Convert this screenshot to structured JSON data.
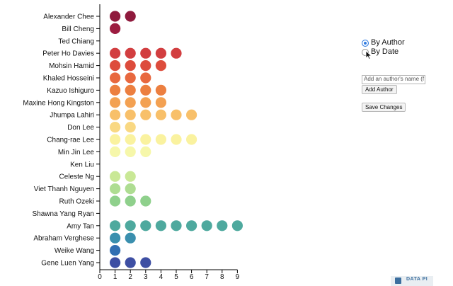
{
  "chart_data": {
    "type": "dot",
    "categories": [
      "Alexander Chee",
      "Bill Cheng",
      "Ted Chiang",
      "Peter Ho Davies",
      "Mohsin Hamid",
      "Khaled Hosseini",
      "Kazuo Ishiguro",
      "Maxine Hong Kingston",
      "Jhumpa Lahiri",
      "Don Lee",
      "Chang-rae Lee",
      "Min Jin Lee",
      "Ken Liu",
      "Celeste Ng",
      "Viet Thanh Nguyen",
      "Ruth Ozeki",
      "Shawna Yang Ryan",
      "Amy Tan",
      "Abraham Verghese",
      "Weike Wang",
      "Gene Luen Yang"
    ],
    "values": [
      2,
      1,
      0,
      5,
      4,
      3,
      4,
      4,
      6,
      2,
      6,
      3,
      0,
      2,
      2,
      3,
      0,
      9,
      2,
      1,
      3
    ],
    "colors": [
      "#8f1a3d",
      "#9c1c40",
      "#b32440",
      "#d23e40",
      "#dd4c3c",
      "#e8683f",
      "#ec7f40",
      "#f3a152",
      "#f8c06a",
      "#f9d882",
      "#faf29f",
      "#f6f7aa",
      "#e6f3a2",
      "#c9e896",
      "#aedd92",
      "#8fd08c",
      "#6cc19a",
      "#4ea99e",
      "#3a8fae",
      "#316fb2",
      "#3e4fa3"
    ],
    "xlim": [
      0,
      9
    ],
    "xticks": [
      "0",
      "1",
      "2",
      "3",
      "4",
      "5",
      "6",
      "7",
      "8",
      "9"
    ],
    "xlabel": "",
    "ylabel": "",
    "title": "",
    "grid": false
  },
  "controls": {
    "by_author_label": "By Author",
    "by_date_label": "By Date",
    "selected": "by_author",
    "author_input_placeholder": "Add an author's name (f",
    "add_author_label": "Add Author",
    "save_changes_label": "Save Changes"
  },
  "badge": {
    "text": "DATA PI"
  }
}
